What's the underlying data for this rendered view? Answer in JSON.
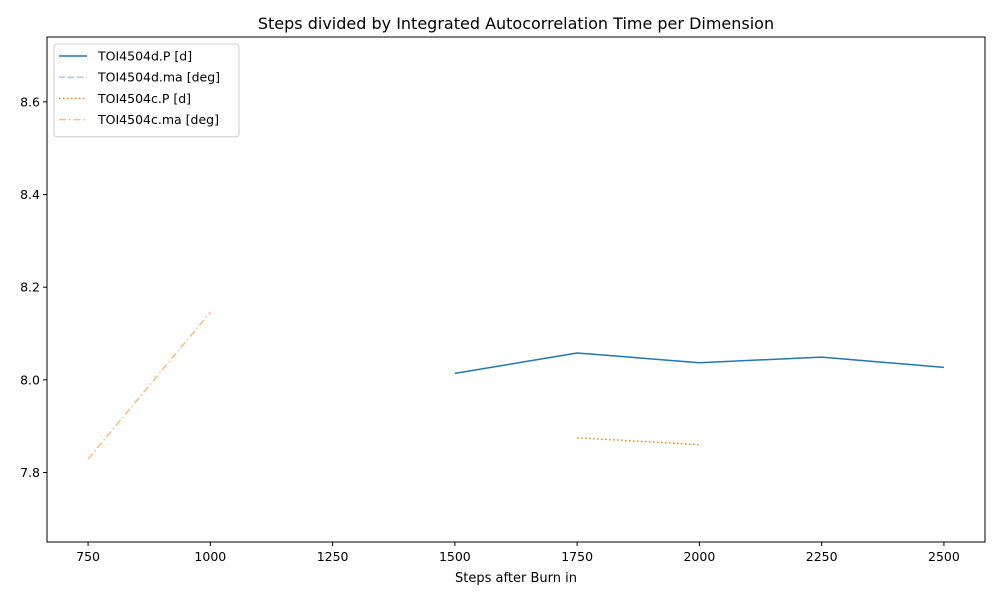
{
  "chart_data": {
    "type": "line",
    "title": "Steps divided by Integrated Autocorrelation Time per Dimension",
    "xlabel": "Steps after Burn in",
    "ylabel": "",
    "xlim": [
      666,
      2584
    ],
    "ylim": [
      7.65,
      8.74
    ],
    "xticks": [
      750,
      1000,
      1250,
      1500,
      1750,
      2000,
      2250,
      2500
    ],
    "xtick_labels": [
      "750",
      "1000",
      "1250",
      "1500",
      "1750",
      "2000",
      "2250",
      "2500"
    ],
    "yticks": [
      7.8,
      8.0,
      8.2,
      8.4,
      8.6
    ],
    "ytick_labels": [
      "7.8",
      "8.0",
      "8.2",
      "8.4",
      "8.6"
    ],
    "grid": false,
    "legend_position": "top-left",
    "series": [
      {
        "name": "TOI4504d.P [d]",
        "color": "#1f77b4",
        "linestyle": "solid",
        "x": [
          1500,
          1750,
          2000,
          2250,
          2500
        ],
        "y": [
          8.014,
          8.058,
          8.037,
          8.049,
          8.027
        ]
      },
      {
        "name": "TOI4504d.ma [deg]",
        "color": "#aec7e8",
        "linestyle": "dashed",
        "x": [],
        "y": []
      },
      {
        "name": "TOI4504c.P [d]",
        "color": "#ff7f0e",
        "linestyle": "dotted",
        "x": [
          1750,
          2000
        ],
        "y": [
          7.875,
          7.86
        ]
      },
      {
        "name": "TOI4504c.ma [deg]",
        "color": "#ffbb78",
        "linestyle": "dashdot",
        "x": [
          750,
          1000
        ],
        "y": [
          7.829,
          8.146
        ]
      }
    ]
  }
}
